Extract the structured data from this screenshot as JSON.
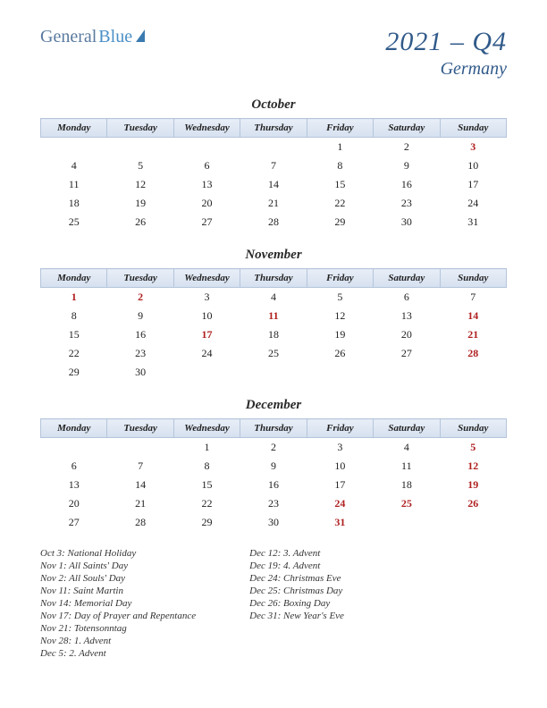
{
  "logo": {
    "part1": "General",
    "part2": "Blue"
  },
  "title": {
    "main": "2021 – Q4",
    "country": "Germany"
  },
  "dayHeaders": [
    "Monday",
    "Tuesday",
    "Wednesday",
    "Thursday",
    "Friday",
    "Saturday",
    "Sunday"
  ],
  "colors": {
    "title_color": "#315a8a",
    "header_bg_top": "#e8eef7",
    "header_bg_bottom": "#d5e0ef",
    "header_border": "#b5c5db",
    "holiday_color": "#b02020",
    "logo_general": "#5a7a9f",
    "logo_blue": "#4a8fc7"
  },
  "months": [
    {
      "name": "October",
      "weeks": [
        [
          "",
          "",
          "",
          "",
          "1",
          "2",
          {
            "d": "3",
            "h": true
          }
        ],
        [
          "4",
          "5",
          "6",
          "7",
          "8",
          "9",
          "10"
        ],
        [
          "11",
          "12",
          "13",
          "14",
          "15",
          "16",
          "17"
        ],
        [
          "18",
          "19",
          "20",
          "21",
          "22",
          "23",
          "24"
        ],
        [
          "25",
          "26",
          "27",
          "28",
          "29",
          "30",
          "31"
        ]
      ]
    },
    {
      "name": "November",
      "weeks": [
        [
          {
            "d": "1",
            "h": true
          },
          {
            "d": "2",
            "h": true
          },
          "3",
          "4",
          "5",
          "6",
          "7"
        ],
        [
          "8",
          "9",
          "10",
          {
            "d": "11",
            "h": true
          },
          "12",
          "13",
          {
            "d": "14",
            "h": true
          }
        ],
        [
          "15",
          "16",
          {
            "d": "17",
            "h": true
          },
          "18",
          "19",
          "20",
          {
            "d": "21",
            "h": true
          }
        ],
        [
          "22",
          "23",
          "24",
          "25",
          "26",
          "27",
          {
            "d": "28",
            "h": true
          }
        ],
        [
          "29",
          "30",
          "",
          "",
          "",
          "",
          ""
        ]
      ]
    },
    {
      "name": "December",
      "weeks": [
        [
          "",
          "",
          "1",
          "2",
          "3",
          "4",
          {
            "d": "5",
            "h": true
          }
        ],
        [
          "6",
          "7",
          "8",
          "9",
          "10",
          "11",
          {
            "d": "12",
            "h": true
          }
        ],
        [
          "13",
          "14",
          "15",
          "16",
          "17",
          "18",
          {
            "d": "19",
            "h": true
          }
        ],
        [
          "20",
          "21",
          "22",
          "23",
          {
            "d": "24",
            "h": true
          },
          {
            "d": "25",
            "h": true
          },
          {
            "d": "26",
            "h": true
          }
        ],
        [
          "27",
          "28",
          "29",
          "30",
          {
            "d": "31",
            "h": true
          },
          "",
          ""
        ]
      ]
    }
  ],
  "holidays": {
    "col1": [
      "Oct 3: National Holiday",
      "Nov 1: All Saints' Day",
      "Nov 2: All Souls' Day",
      "Nov 11: Saint Martin",
      "Nov 14: Memorial Day",
      "Nov 17: Day of Prayer and Repentance",
      "Nov 21: Totensonntag",
      "Nov 28: 1. Advent",
      "Dec 5: 2. Advent"
    ],
    "col2": [
      "Dec 12: 3. Advent",
      "Dec 19: 4. Advent",
      "Dec 24: Christmas Eve",
      "Dec 25: Christmas Day",
      "Dec 26: Boxing Day",
      "Dec 31: New Year's Eve"
    ]
  }
}
